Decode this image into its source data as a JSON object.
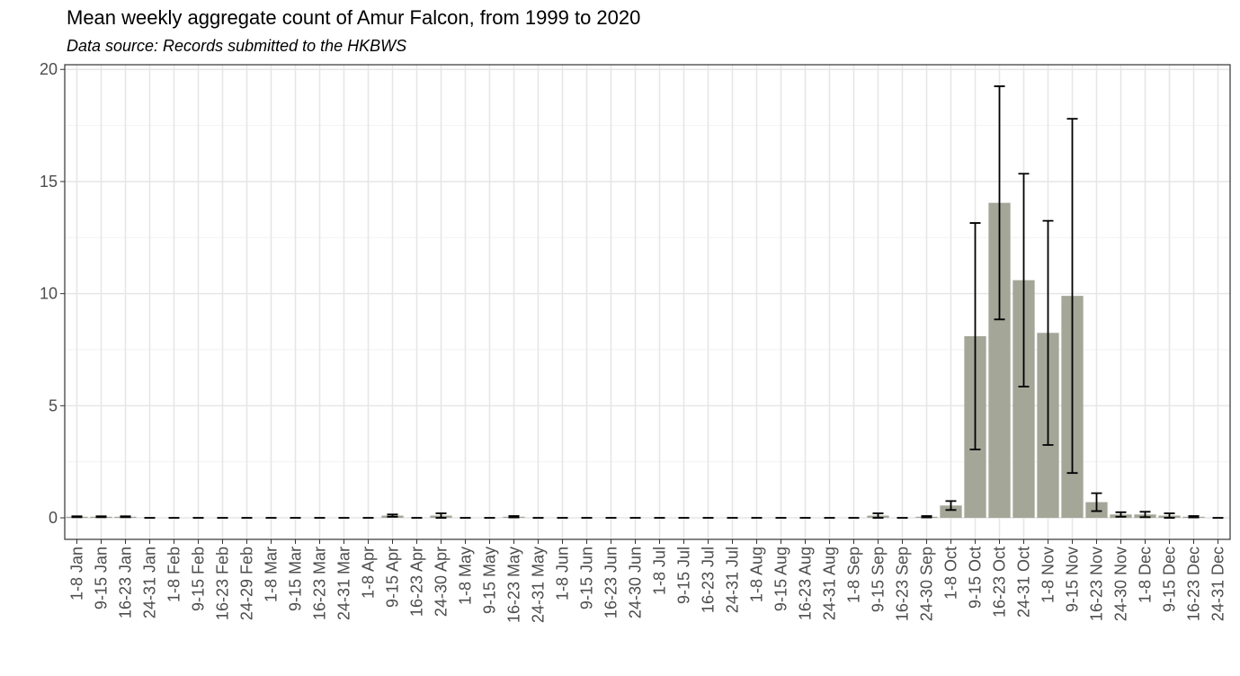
{
  "chart_data": {
    "type": "bar",
    "title": "Mean weekly aggregate count of Amur Falcon, from 1999 to 2020",
    "subtitle": "Data source: Records submitted to the HKBWS",
    "categories": [
      "1-8 Jan",
      "9-15 Jan",
      "16-23 Jan",
      "24-31 Jan",
      "1-8 Feb",
      "9-15 Feb",
      "16-23 Feb",
      "24-29 Feb",
      "1-8 Mar",
      "9-15 Mar",
      "16-23 Mar",
      "24-31 Mar",
      "1-8 Apr",
      "9-15 Apr",
      "16-23 Apr",
      "24-30 Apr",
      "1-8 May",
      "9-15 May",
      "16-23 May",
      "24-31 May",
      "1-8 Jun",
      "9-15 Jun",
      "16-23 Jun",
      "24-30 Jun",
      "1-8 Jul",
      "9-15 Jul",
      "16-23 Jul",
      "24-31 Jul",
      "1-8 Aug",
      "9-15 Aug",
      "16-23 Aug",
      "24-31 Aug",
      "1-8 Sep",
      "9-15 Sep",
      "16-23 Sep",
      "24-30 Sep",
      "1-8 Oct",
      "9-15 Oct",
      "16-23 Oct",
      "24-31 Oct",
      "1-8 Nov",
      "9-15 Nov",
      "16-23 Nov",
      "24-30 Nov",
      "1-8 Dec",
      "9-15 Dec",
      "16-23 Dec",
      "24-31 Dec"
    ],
    "values": [
      0.05,
      0.05,
      0.05,
      0,
      0,
      0,
      0,
      0,
      0,
      0,
      0,
      0,
      0,
      0.1,
      0,
      0.1,
      0,
      0,
      0.05,
      0,
      0,
      0,
      0,
      0,
      0,
      0,
      0,
      0,
      0,
      0,
      0,
      0,
      0,
      0.1,
      0,
      0.05,
      0.55,
      8.1,
      14.05,
      10.6,
      8.25,
      9.9,
      0.7,
      0.15,
      0.15,
      0.1,
      0.05,
      0
    ],
    "errors": [
      0.02,
      0.02,
      0.02,
      0,
      0,
      0,
      0,
      0,
      0,
      0,
      0,
      0,
      0,
      0.05,
      0,
      0.1,
      0,
      0,
      0.03,
      0,
      0,
      0,
      0,
      0,
      0,
      0,
      0,
      0,
      0,
      0,
      0,
      0,
      0,
      0.1,
      0,
      0.03,
      0.2,
      5.05,
      5.2,
      4.75,
      5.0,
      7.9,
      0.4,
      0.1,
      0.12,
      0.1,
      0.03,
      0
    ],
    "color": "#a4a698",
    "ylim": [
      -0.96,
      20.21
    ],
    "yticks": [
      0,
      5,
      10,
      15,
      20
    ],
    "y_minor_grid": [
      2.5,
      7.5,
      12.5,
      17.5
    ],
    "grid": true
  }
}
